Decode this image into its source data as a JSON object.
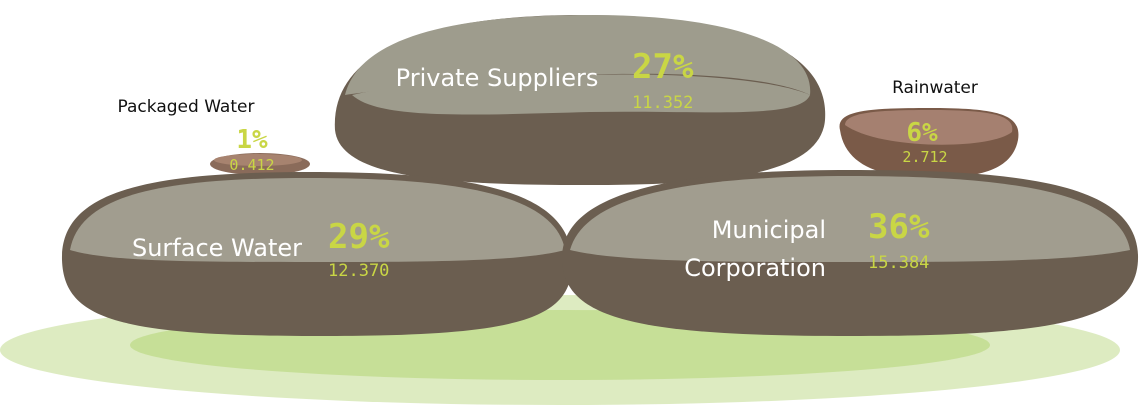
{
  "items": [
    {
      "label_lines": [
        "Private Suppliers"
      ],
      "percent": "27%",
      "value": "11.352"
    },
    {
      "label_lines": [
        "Packaged Water"
      ],
      "percent": "1%",
      "value": "0.412"
    },
    {
      "label_lines": [
        "Rainwater"
      ],
      "percent": "6%",
      "value": "2.712"
    },
    {
      "label_lines": [
        "Surface Water"
      ],
      "percent": "29%",
      "value": "12.370"
    },
    {
      "label_lines": [
        "Municipal",
        "Corporation"
      ],
      "percent": "36%",
      "value": "15.384"
    }
  ]
}
